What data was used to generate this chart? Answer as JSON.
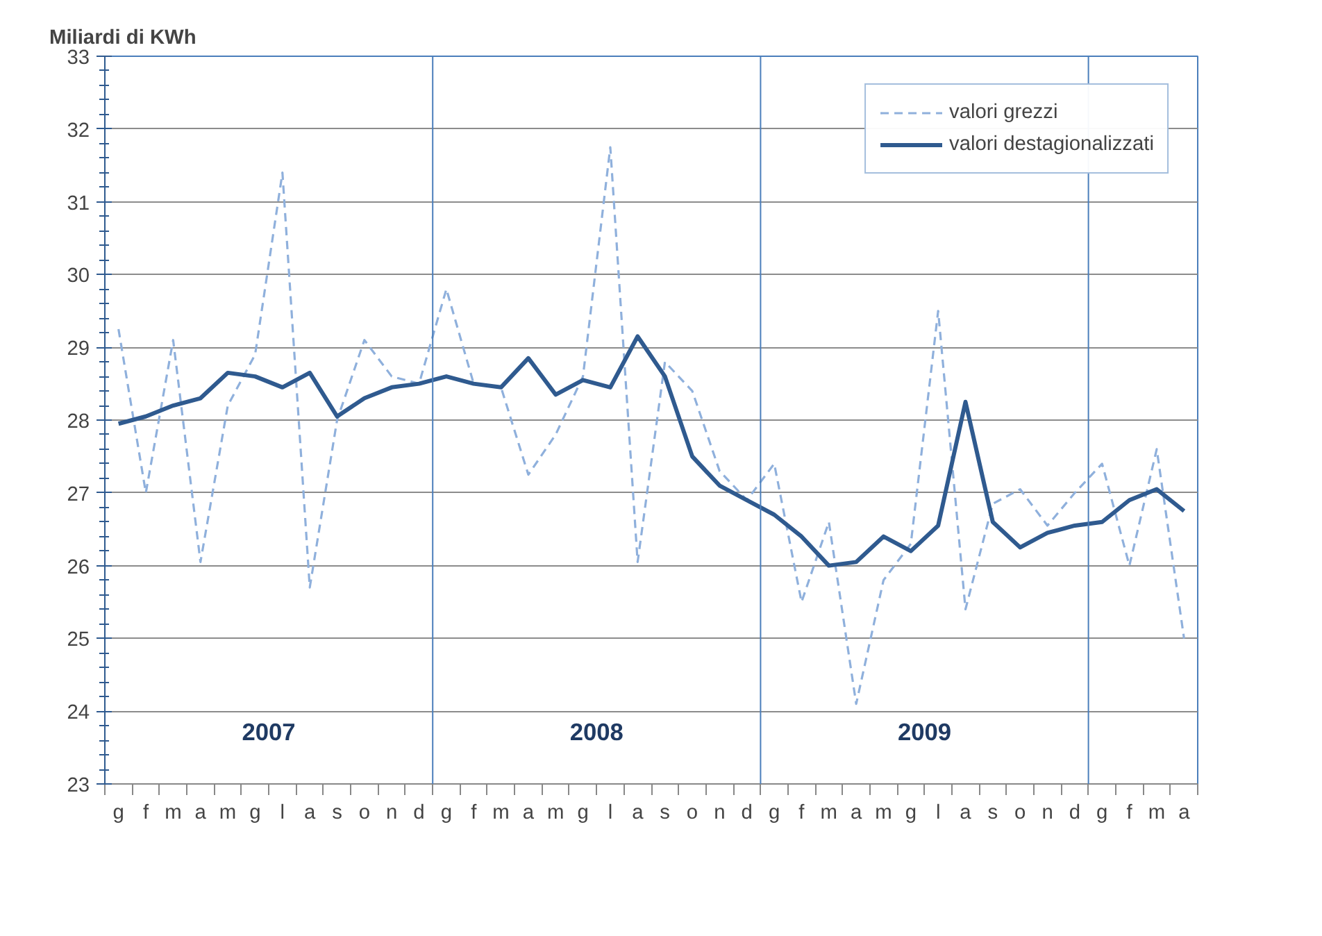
{
  "chart_data": {
    "type": "line",
    "ylabel": "Miliardi di KWh",
    "categories": [
      "g",
      "f",
      "m",
      "a",
      "m",
      "g",
      "l",
      "a",
      "s",
      "o",
      "n",
      "d",
      "g",
      "f",
      "m",
      "a",
      "m",
      "g",
      "l",
      "a",
      "s",
      "o",
      "n",
      "d",
      "g",
      "f",
      "m",
      "a",
      "m",
      "g",
      "l",
      "a",
      "s",
      "o",
      "n",
      "d",
      "g",
      "f",
      "m",
      "a"
    ],
    "series": [
      {
        "name": "valori grezzi",
        "color": "#8fb0dc",
        "line_style": "dashed",
        "values": [
          29.25,
          27.0,
          29.1,
          26.05,
          28.2,
          28.9,
          31.4,
          25.7,
          28.0,
          29.1,
          28.6,
          28.5,
          29.8,
          28.5,
          28.45,
          27.25,
          27.8,
          28.6,
          31.75,
          26.05,
          28.8,
          28.4,
          27.3,
          26.9,
          27.4,
          25.5,
          26.6,
          24.1,
          25.8,
          26.3,
          29.5,
          25.4,
          26.85,
          27.05,
          26.55,
          27.0,
          27.4,
          26.0,
          27.6,
          25.0
        ]
      },
      {
        "name": "valori destagionalizzati",
        "color": "#2f5a8f",
        "line_style": "solid",
        "values": [
          27.95,
          28.05,
          28.2,
          28.3,
          28.65,
          28.6,
          28.45,
          28.65,
          28.05,
          28.3,
          28.45,
          28.5,
          28.6,
          28.5,
          28.45,
          28.85,
          28.35,
          28.55,
          28.45,
          29.15,
          28.6,
          27.5,
          27.1,
          26.9,
          26.7,
          26.4,
          26.0,
          26.05,
          26.4,
          26.2,
          26.55,
          28.25,
          26.6,
          26.25,
          26.45,
          26.55,
          26.6,
          26.9,
          27.05,
          26.75
        ]
      }
    ],
    "ylim": [
      23,
      33
    ],
    "yticks": [
      23,
      24,
      25,
      26,
      27,
      28,
      29,
      30,
      31,
      32,
      33
    ],
    "grid": "y",
    "legend": "top right",
    "marker": "none",
    "annotations": [
      "2007",
      "2008",
      "2009"
    ]
  }
}
